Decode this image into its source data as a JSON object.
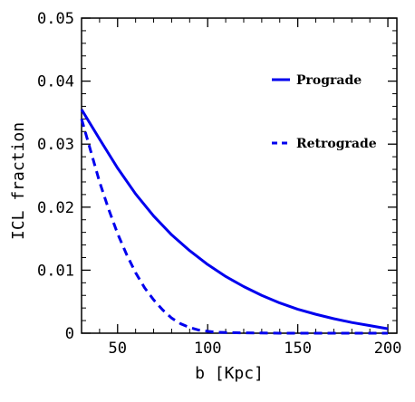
{
  "chart_data": {
    "type": "line",
    "title": "",
    "xlabel": "b [Kpc]",
    "ylabel": "ICL fraction",
    "xlim": [
      30,
      205
    ],
    "ylim": [
      0,
      0.05
    ],
    "xticks": [
      50,
      100,
      150,
      200
    ],
    "yticks": [
      0,
      0.01,
      0.02,
      0.03,
      0.04,
      0.05
    ],
    "xtick_labels": [
      "50",
      "100",
      "150",
      "200"
    ],
    "ytick_labels": [
      "0",
      "0.01",
      "0.02",
      "0.03",
      "0.04",
      "0.05"
    ],
    "grid": false,
    "legend_position": "right",
    "series": [
      {
        "name": "Prograde",
        "style": "solid",
        "color": "#0000ee",
        "x": [
          30,
          40,
          50,
          60,
          70,
          80,
          90,
          100,
          110,
          120,
          130,
          140,
          150,
          160,
          170,
          180,
          190,
          200
        ],
        "y": [
          0.0355,
          0.0308,
          0.0262,
          0.0221,
          0.0186,
          0.0156,
          0.0131,
          0.0109,
          0.009,
          0.0074,
          0.006,
          0.0048,
          0.0038,
          0.003,
          0.0023,
          0.0017,
          0.0012,
          0.0007
        ]
      },
      {
        "name": "Retrograde",
        "style": "dashed",
        "color": "#0000ee",
        "x": [
          30,
          35,
          40,
          45,
          50,
          55,
          60,
          65,
          70,
          75,
          80,
          85,
          90,
          95,
          100,
          105,
          110,
          120,
          140,
          160,
          180,
          200
        ],
        "y": [
          0.034,
          0.029,
          0.024,
          0.0197,
          0.0158,
          0.0125,
          0.0096,
          0.0072,
          0.0053,
          0.0037,
          0.0024,
          0.0015,
          0.0009,
          0.0005,
          0.0003,
          0.00015,
          0.0001,
          5e-05,
          0.0,
          0.0,
          0.0,
          0.0
        ]
      }
    ]
  }
}
